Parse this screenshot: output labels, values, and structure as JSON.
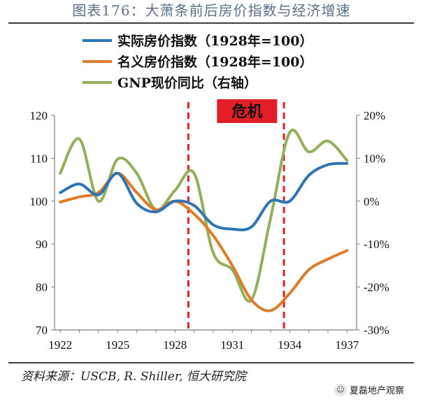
{
  "title": "图表176：大萧条前后房价指数与经济增速",
  "source": "资料来源：USCB, R. Shiller, 恒大研究院",
  "watermark": "夏磊地产观察",
  "chart_data": {
    "type": "line",
    "legend": [
      {
        "name": "实际房价指数（1928年=100）",
        "color": "#2e75b6"
      },
      {
        "name": "名义房价指数（1928年=100）",
        "color": "#e07b28"
      },
      {
        "name": "GNP现价同比（右轴）",
        "color": "#92b05a"
      }
    ],
    "legend_position": "top-left",
    "x": [
      1922,
      1923,
      1924,
      1925,
      1926,
      1927,
      1928,
      1929,
      1930,
      1931,
      1932,
      1933,
      1934,
      1935,
      1936,
      1937
    ],
    "x_ticks": [
      "1922",
      "1925",
      "1928",
      "1931",
      "1934",
      "1937"
    ],
    "xlim": [
      1921.7,
      1937.5
    ],
    "y_left": {
      "ylim": [
        70,
        120
      ],
      "ticks": [
        "70",
        "80",
        "90",
        "100",
        "110",
        "120"
      ]
    },
    "y_right": {
      "ylim": [
        -30,
        20
      ],
      "ticks": [
        "-30%",
        "-20%",
        "-10%",
        "0%",
        "10%",
        "20%"
      ]
    },
    "series": [
      {
        "name": "实际房价指数（1928年=100）",
        "axis": "left",
        "color": "#2e75b6",
        "values": [
          102,
          104,
          101.5,
          106.5,
          99.5,
          97.5,
          100,
          99,
          94.5,
          93.5,
          94,
          100,
          100,
          106,
          108.5,
          108.8
        ]
      },
      {
        "name": "名义房价指数（1928年=100）",
        "axis": "left",
        "color": "#e07b28",
        "values": [
          99.8,
          101,
          102,
          106.5,
          102,
          98,
          100,
          97,
          92,
          85,
          77,
          74.5,
          78.5,
          84,
          86.5,
          88.5
        ]
      },
      {
        "name": "GNP现价同比（右轴）",
        "axis": "right",
        "color": "#92b05a",
        "values": [
          6.5,
          14.5,
          0,
          9.8,
          6.5,
          -2,
          2.5,
          6.5,
          -12,
          -16,
          -23,
          -4,
          16,
          11.5,
          14,
          9.5
        ]
      }
    ],
    "crisis_band": {
      "label": "危机",
      "start": 1928.7,
      "end": 1933.7,
      "color": "#e21e26"
    }
  }
}
